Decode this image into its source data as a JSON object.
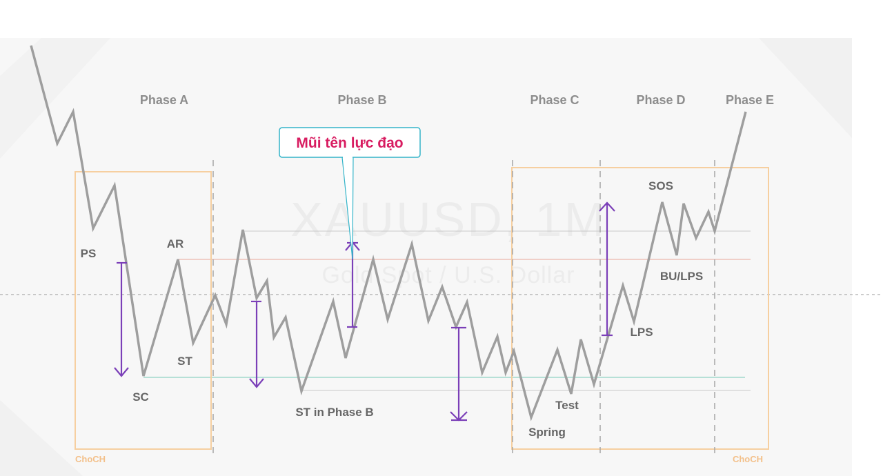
{
  "watermark": {
    "symbol": "XAUUSD, 1M",
    "description": "Gold Spot / U.S. Dollar"
  },
  "phases": [
    "Phase A",
    "Phase B",
    "Phase C",
    "Phase D",
    "Phase E"
  ],
  "callout": "Mũi tên lực đạo",
  "labels": {
    "ps": "PS",
    "ar": "AR",
    "st": "ST",
    "sc": "SC",
    "st_phase_b": "ST in Phase B",
    "spring": "Spring",
    "test": "Test",
    "sos": "SOS",
    "bu_lps": "BU/LPS",
    "lps": "LPS"
  },
  "choch": [
    "ChoCH",
    "ChoCH"
  ],
  "colors": {
    "price_line": "#9e9e9e",
    "arrows": "#7b3fb8",
    "boxes": "#f6cfa0",
    "resistance_line": "#e9a79a",
    "support_line": "#8fd3c4",
    "callout_border": "#33b4c9",
    "callout_text": "#d81b60"
  }
}
